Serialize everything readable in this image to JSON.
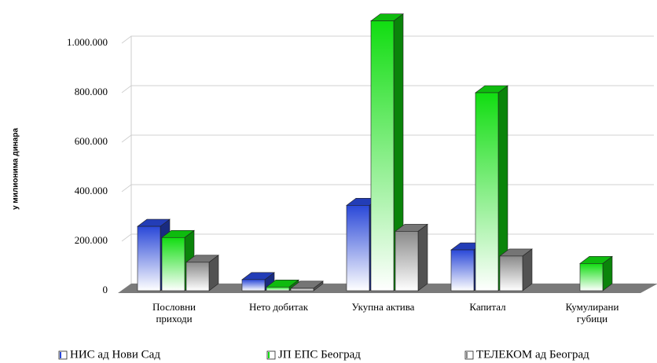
{
  "chart_data": {
    "type": "bar3d",
    "y_label": "у милионима динара",
    "categories": [
      "Пословни приходи",
      "Нето добитак",
      "Укупна актива",
      "Капитал",
      "Кумулирани губици"
    ],
    "series": [
      {
        "name": "НИС ад Нови Сад",
        "color": "#2a48d8",
        "values": [
          260000,
          45000,
          345000,
          165000,
          0
        ]
      },
      {
        "name": "ЈП ЕПС Београд",
        "color": "#11dd11",
        "values": [
          215000,
          15000,
          1090000,
          800000,
          110000
        ]
      },
      {
        "name": "ТЕЛЕКОМ ад Београд",
        "color": "#8a8a8a",
        "values": [
          115000,
          10000,
          240000,
          140000,
          0
        ]
      }
    ],
    "ylim": [
      0,
      1000000
    ],
    "yticks": [
      0,
      {
        "value": 200000,
        "label": "200.000"
      },
      {
        "value": 400000,
        "label": "400.000"
      },
      {
        "value": 600000,
        "label": "600.000"
      },
      {
        "value": 800000,
        "label": "800.000"
      },
      {
        "value": 1000000,
        "label": "1.000.000"
      }
    ],
    "grid": true
  }
}
